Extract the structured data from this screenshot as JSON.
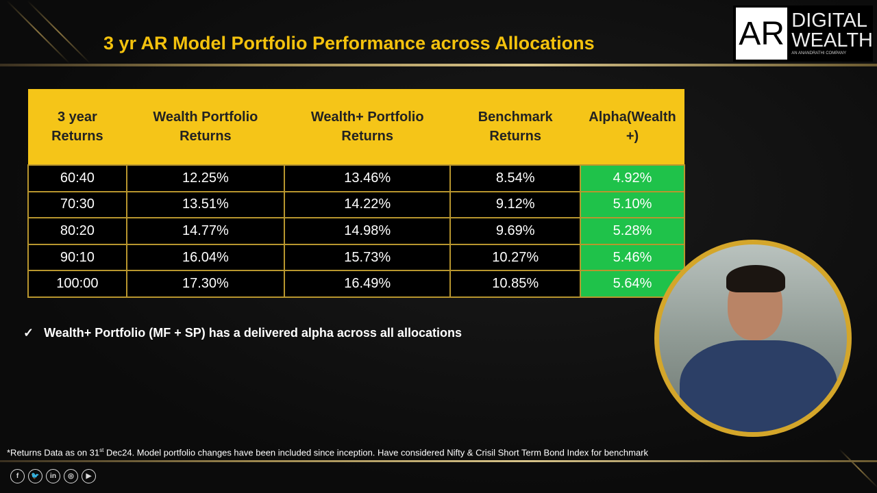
{
  "title": "3 yr AR Model Portfolio Performance across Allocations",
  "logo": {
    "mark": "AR",
    "line1": "DIGITAL",
    "line2": "WEALTH",
    "tagline": "AN ANANDRATHI COMPANY"
  },
  "table": {
    "headers": [
      "3 year Returns",
      "Wealth Portfolio Returns",
      "Wealth+ Portfolio Returns",
      "Benchmark Returns",
      "Alpha(Wealth +)"
    ],
    "rows": [
      [
        "60:40",
        "12.25%",
        "13.46%",
        "8.54%",
        "4.92%"
      ],
      [
        "70:30",
        "13.51%",
        "14.22%",
        "9.12%",
        "5.10%"
      ],
      [
        "80:20",
        "14.77%",
        "14.98%",
        "9.69%",
        "5.28%"
      ],
      [
        "90:10",
        "16.04%",
        "15.73%",
        "10.27%",
        "5.46%"
      ],
      [
        "100:00",
        "17.30%",
        "16.49%",
        "10.85%",
        "5.64%"
      ]
    ]
  },
  "note": "Wealth+ Portfolio (MF + SP) has a delivered alpha across all allocations",
  "footnote": {
    "pre": "*Returns Data as on 31",
    "sup": "st",
    "post": " Dec24. Model portfolio changes have been included since inception. Have considered Nifty & Crisil Short Term Bond Index for benchmark"
  },
  "social": [
    "f",
    "t",
    "in",
    "ig",
    "yt"
  ],
  "colors": {
    "accent": "#f4c20d",
    "header_bg": "#f5c518",
    "alpha_bg": "#1fc24a",
    "border": "#b8962e"
  }
}
